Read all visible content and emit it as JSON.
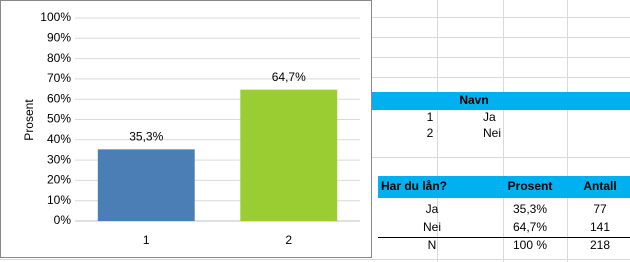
{
  "chart_data": {
    "type": "bar",
    "y_label": "Prosent",
    "categories": [
      "1",
      "2"
    ],
    "values": [
      35.3,
      64.7
    ],
    "value_labels": [
      "35,3%",
      "64,7%"
    ],
    "colors": [
      "#4a7eb4",
      "#9acd32"
    ],
    "ylim": [
      0,
      100
    ],
    "yticks": [
      {
        "value": 0,
        "label": "0%"
      },
      {
        "value": 10,
        "label": "10%"
      },
      {
        "value": 20,
        "label": "20%"
      },
      {
        "value": 30,
        "label": "30%"
      },
      {
        "value": 40,
        "label": "40%"
      },
      {
        "value": 50,
        "label": "50%"
      },
      {
        "value": 60,
        "label": "60%"
      },
      {
        "value": 70,
        "label": "70%"
      },
      {
        "value": 80,
        "label": "80%"
      },
      {
        "value": 90,
        "label": "90%"
      },
      {
        "value": 100,
        "label": "100%"
      }
    ],
    "grid": true
  },
  "names_table": {
    "header": "Navn",
    "rows": [
      [
        "1",
        "Ja"
      ],
      [
        "2",
        "Nei"
      ]
    ]
  },
  "summary_table": {
    "headers": [
      "Har du lån?",
      "Prosent",
      "Antall"
    ],
    "rows": [
      [
        "Ja",
        "35,3%",
        "77"
      ],
      [
        "Nei",
        "64,7%",
        "141"
      ],
      [
        "N",
        "100 %",
        "218"
      ]
    ]
  }
}
